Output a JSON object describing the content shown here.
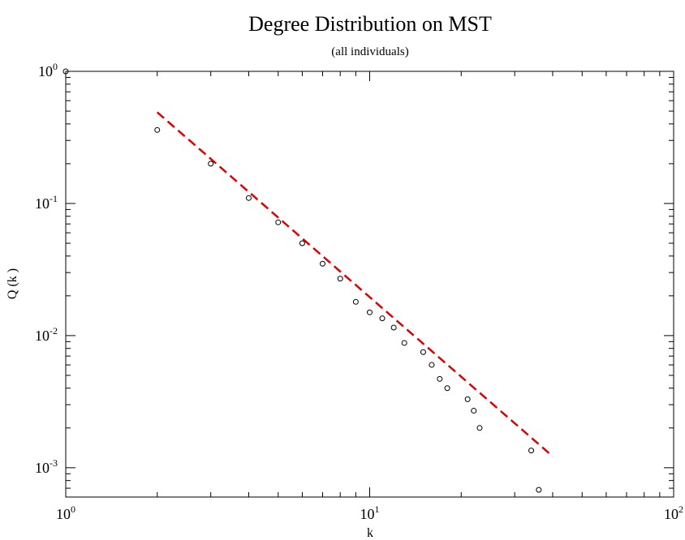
{
  "chart_data": {
    "type": "scatter",
    "title": "Degree Distribution on MST",
    "subtitle": "(all individuals)",
    "xlabel": "k",
    "ylabel": "Q (k )",
    "x_scale": "log",
    "y_scale": "log",
    "xlim": [
      1,
      100
    ],
    "ylim": [
      0.0006,
      1
    ],
    "grid": false,
    "x_ticks": [
      {
        "value": 1,
        "base": "10",
        "exp": "0"
      },
      {
        "value": 10,
        "base": "10",
        "exp": "1"
      },
      {
        "value": 100,
        "base": "10",
        "exp": "2"
      }
    ],
    "y_ticks": [
      {
        "value": 1,
        "base": "10",
        "exp": "0"
      },
      {
        "value": 0.1,
        "base": "10",
        "exp": "-1"
      },
      {
        "value": 0.01,
        "base": "10",
        "exp": "-2"
      },
      {
        "value": 0.001,
        "base": "10",
        "exp": "-3"
      }
    ],
    "series": [
      {
        "marker": "open-circle",
        "color": "#000000",
        "points": [
          [
            1,
            1.0
          ],
          [
            2,
            0.36
          ],
          [
            3,
            0.2
          ],
          [
            4,
            0.11
          ],
          [
            5,
            0.072
          ],
          [
            6,
            0.05
          ],
          [
            7,
            0.035
          ],
          [
            8,
            0.027
          ],
          [
            9,
            0.018
          ],
          [
            10,
            0.015
          ],
          [
            11,
            0.0135
          ],
          [
            12,
            0.0115
          ],
          [
            13,
            0.0088
          ],
          [
            15,
            0.0075
          ],
          [
            16,
            0.006
          ],
          [
            17,
            0.0047
          ],
          [
            18,
            0.004
          ],
          [
            21,
            0.0033
          ],
          [
            22,
            0.0027
          ],
          [
            23,
            0.002
          ],
          [
            34,
            0.00135
          ],
          [
            36,
            0.00068
          ]
        ]
      },
      {
        "style": "dashed-line",
        "color": "#dd0000",
        "points": [
          [
            2,
            0.49
          ],
          [
            40,
            0.00122
          ]
        ]
      }
    ]
  }
}
